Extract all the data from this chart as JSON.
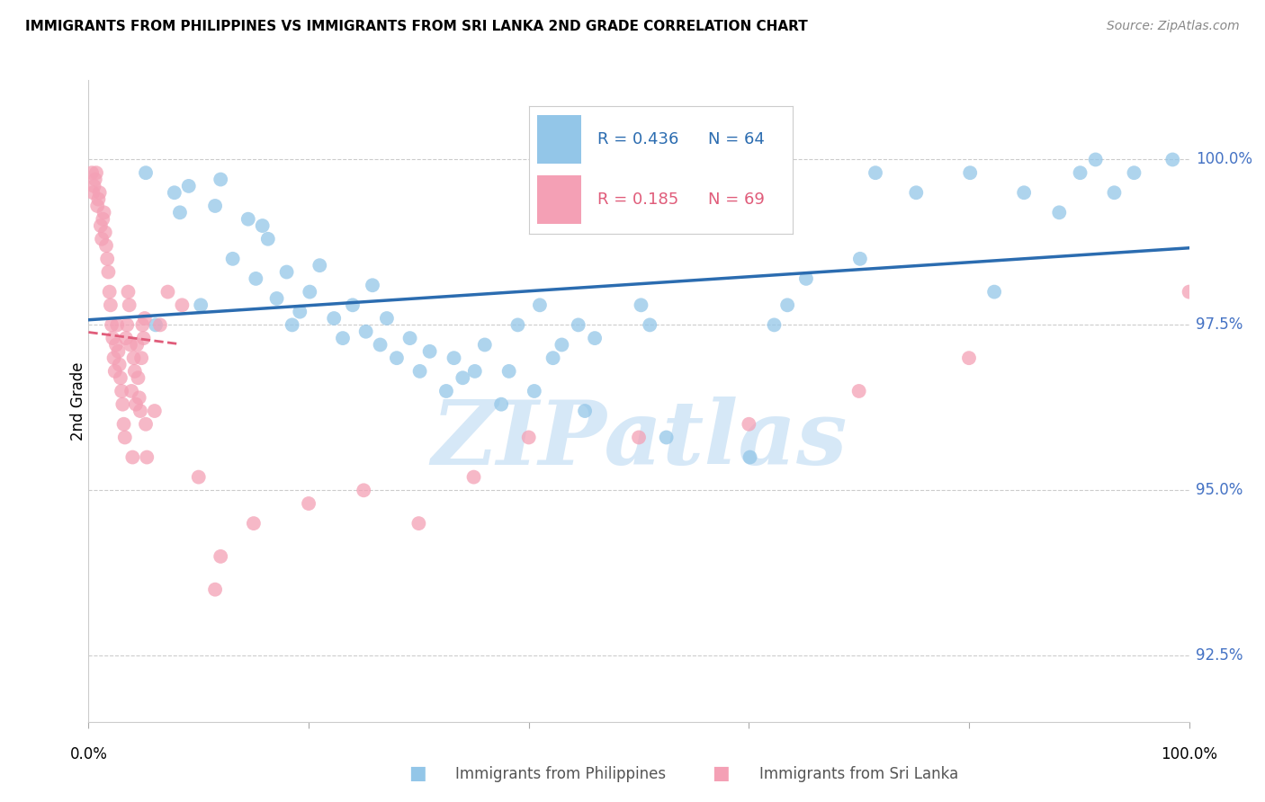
{
  "title": "IMMIGRANTS FROM PHILIPPINES VS IMMIGRANTS FROM SRI LANKA 2ND GRADE CORRELATION CHART",
  "source": "Source: ZipAtlas.com",
  "ylabel": "2nd Grade",
  "y_ticks": [
    92.5,
    95.0,
    97.5,
    100.0
  ],
  "y_tick_labels": [
    "92.5%",
    "95.0%",
    "97.5%",
    "100.0%"
  ],
  "xlim": [
    0.0,
    100.0
  ],
  "ylim": [
    91.5,
    101.2
  ],
  "legend_r_blue": "R = 0.436",
  "legend_n_blue": "N = 64",
  "legend_r_pink": "R = 0.185",
  "legend_n_pink": "N = 69",
  "blue_color": "#93c6e8",
  "pink_color": "#f4a0b5",
  "blue_line_color": "#2b6cb0",
  "pink_line_color": "#e05c7a",
  "tick_color": "#4472c4",
  "watermark_color": "#d6e8f7",
  "blue_scatter_x": [
    5.2,
    6.1,
    7.8,
    8.3,
    9.1,
    10.2,
    11.5,
    12.0,
    13.1,
    14.5,
    15.2,
    15.8,
    16.3,
    17.1,
    18.0,
    18.5,
    19.2,
    20.1,
    21.0,
    22.3,
    23.1,
    24.0,
    25.2,
    25.8,
    26.5,
    27.1,
    28.0,
    29.2,
    30.1,
    31.0,
    32.5,
    33.2,
    34.0,
    35.1,
    36.0,
    37.5,
    38.2,
    39.0,
    40.5,
    41.0,
    42.2,
    43.0,
    44.5,
    45.1,
    46.0,
    50.2,
    51.0,
    52.5,
    60.1,
    62.3,
    63.5,
    65.2,
    70.1,
    71.5,
    75.2,
    80.1,
    82.3,
    85.0,
    88.2,
    90.1,
    91.5,
    93.2,
    95.0,
    98.5
  ],
  "blue_scatter_y": [
    99.8,
    97.5,
    99.5,
    99.2,
    99.6,
    97.8,
    99.3,
    99.7,
    98.5,
    99.1,
    98.2,
    99.0,
    98.8,
    97.9,
    98.3,
    97.5,
    97.7,
    98.0,
    98.4,
    97.6,
    97.3,
    97.8,
    97.4,
    98.1,
    97.2,
    97.6,
    97.0,
    97.3,
    96.8,
    97.1,
    96.5,
    97.0,
    96.7,
    96.8,
    97.2,
    96.3,
    96.8,
    97.5,
    96.5,
    97.8,
    97.0,
    97.2,
    97.5,
    96.2,
    97.3,
    97.8,
    97.5,
    95.8,
    95.5,
    97.5,
    97.8,
    98.2,
    98.5,
    99.8,
    99.5,
    99.8,
    98.0,
    99.5,
    99.2,
    99.8,
    100.0,
    99.5,
    99.8,
    100.0
  ],
  "pink_scatter_x": [
    0.3,
    0.4,
    0.5,
    0.6,
    0.7,
    0.8,
    0.9,
    1.0,
    1.1,
    1.2,
    1.3,
    1.4,
    1.5,
    1.6,
    1.7,
    1.8,
    1.9,
    2.0,
    2.1,
    2.2,
    2.3,
    2.4,
    2.5,
    2.6,
    2.7,
    2.8,
    2.9,
    3.0,
    3.1,
    3.2,
    3.3,
    3.4,
    3.5,
    3.6,
    3.7,
    3.8,
    3.9,
    4.0,
    4.1,
    4.2,
    4.3,
    4.4,
    4.5,
    4.6,
    4.7,
    4.8,
    4.9,
    5.0,
    5.1,
    5.2,
    5.3,
    6.0,
    6.5,
    7.2,
    8.5,
    10.0,
    11.5,
    12.0,
    15.0,
    20.0,
    25.0,
    30.0,
    35.0,
    40.0,
    50.0,
    60.0,
    70.0,
    80.0,
    100.0
  ],
  "pink_scatter_y": [
    99.8,
    99.5,
    99.6,
    99.7,
    99.8,
    99.3,
    99.4,
    99.5,
    99.0,
    98.8,
    99.1,
    99.2,
    98.9,
    98.7,
    98.5,
    98.3,
    98.0,
    97.8,
    97.5,
    97.3,
    97.0,
    96.8,
    97.2,
    97.5,
    97.1,
    96.9,
    96.7,
    96.5,
    96.3,
    96.0,
    95.8,
    97.3,
    97.5,
    98.0,
    97.8,
    97.2,
    96.5,
    95.5,
    97.0,
    96.8,
    96.3,
    97.2,
    96.7,
    96.4,
    96.2,
    97.0,
    97.5,
    97.3,
    97.6,
    96.0,
    95.5,
    96.2,
    97.5,
    98.0,
    97.8,
    95.2,
    93.5,
    94.0,
    94.5,
    94.8,
    95.0,
    94.5,
    95.2,
    95.8,
    95.8,
    96.0,
    96.5,
    97.0,
    98.0
  ]
}
